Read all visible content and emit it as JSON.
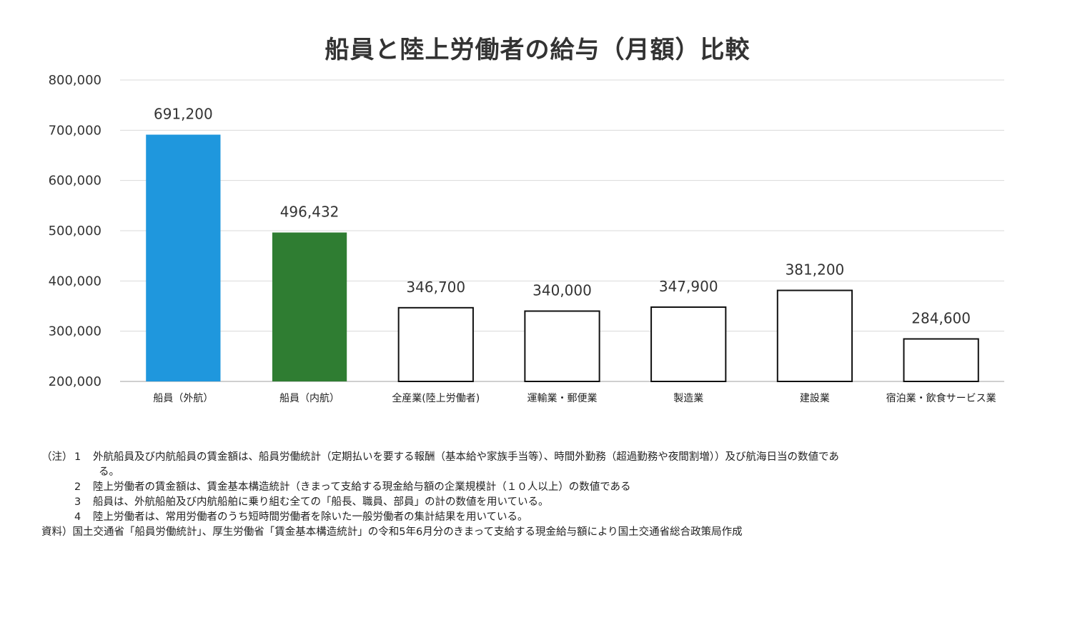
{
  "chart_data": {
    "type": "bar",
    "title": "船員と陸上労働者の給与（月額）比較",
    "categories": [
      "船員（外航）",
      "船員（内航）",
      "全産業(陸上労働者)",
      "運輸業・郵便業",
      "製造業",
      "建設業",
      "宿泊業・飲食サービス業"
    ],
    "values": [
      691200,
      496432,
      346700,
      340000,
      347900,
      381200,
      284600
    ],
    "data_labels": [
      "691,200",
      "496,432",
      "346,700",
      "340,000",
      "347,900",
      "381,200",
      "284,600"
    ],
    "bar_colors": [
      "#1f97dd",
      "#2f7d32",
      "#ffffff",
      "#ffffff",
      "#ffffff",
      "#ffffff",
      "#ffffff"
    ],
    "ylim": [
      200000,
      800000
    ],
    "yticks": [
      200000,
      300000,
      400000,
      500000,
      600000,
      700000,
      800000
    ],
    "ytick_labels": [
      "200,000",
      "300,000",
      "400,000",
      "500,000",
      "600,000",
      "700,000",
      "800,000"
    ],
    "grid": true,
    "xlabel": "",
    "ylabel": ""
  },
  "notes": {
    "prefix": "（注）",
    "items": [
      {
        "num": "1",
        "text": "外航船員及び内航船員の賃金額は、船員労働統計（定期払いを要する報酬（基本給や家族手当等）、時間外勤務（超過勤務や夜間割増））及び航海日当の数値であ",
        "cont": "る。"
      },
      {
        "num": "2",
        "text": "陸上労働者の賃金額は、賃金基本構造統計（きまって支給する現金給与額の企業規模計（１０人以上）の数値である"
      },
      {
        "num": "3",
        "text": "船員は、外航船舶及び内航船舶に乗り組む全ての「船長、職員、部員」の計の数値を用いている。"
      },
      {
        "num": "4",
        "text": "陸上労働者は、常用労働者のうち短時間労働者を除いた一般労働者の集計結果を用いている。"
      }
    ],
    "source": "資料）国土交通省「船員労働統計」、厚生労働省「賃金基本構造統計」の令和5年6月分のきまって支給する現金給与額により国土交通省総合政策局作成"
  }
}
